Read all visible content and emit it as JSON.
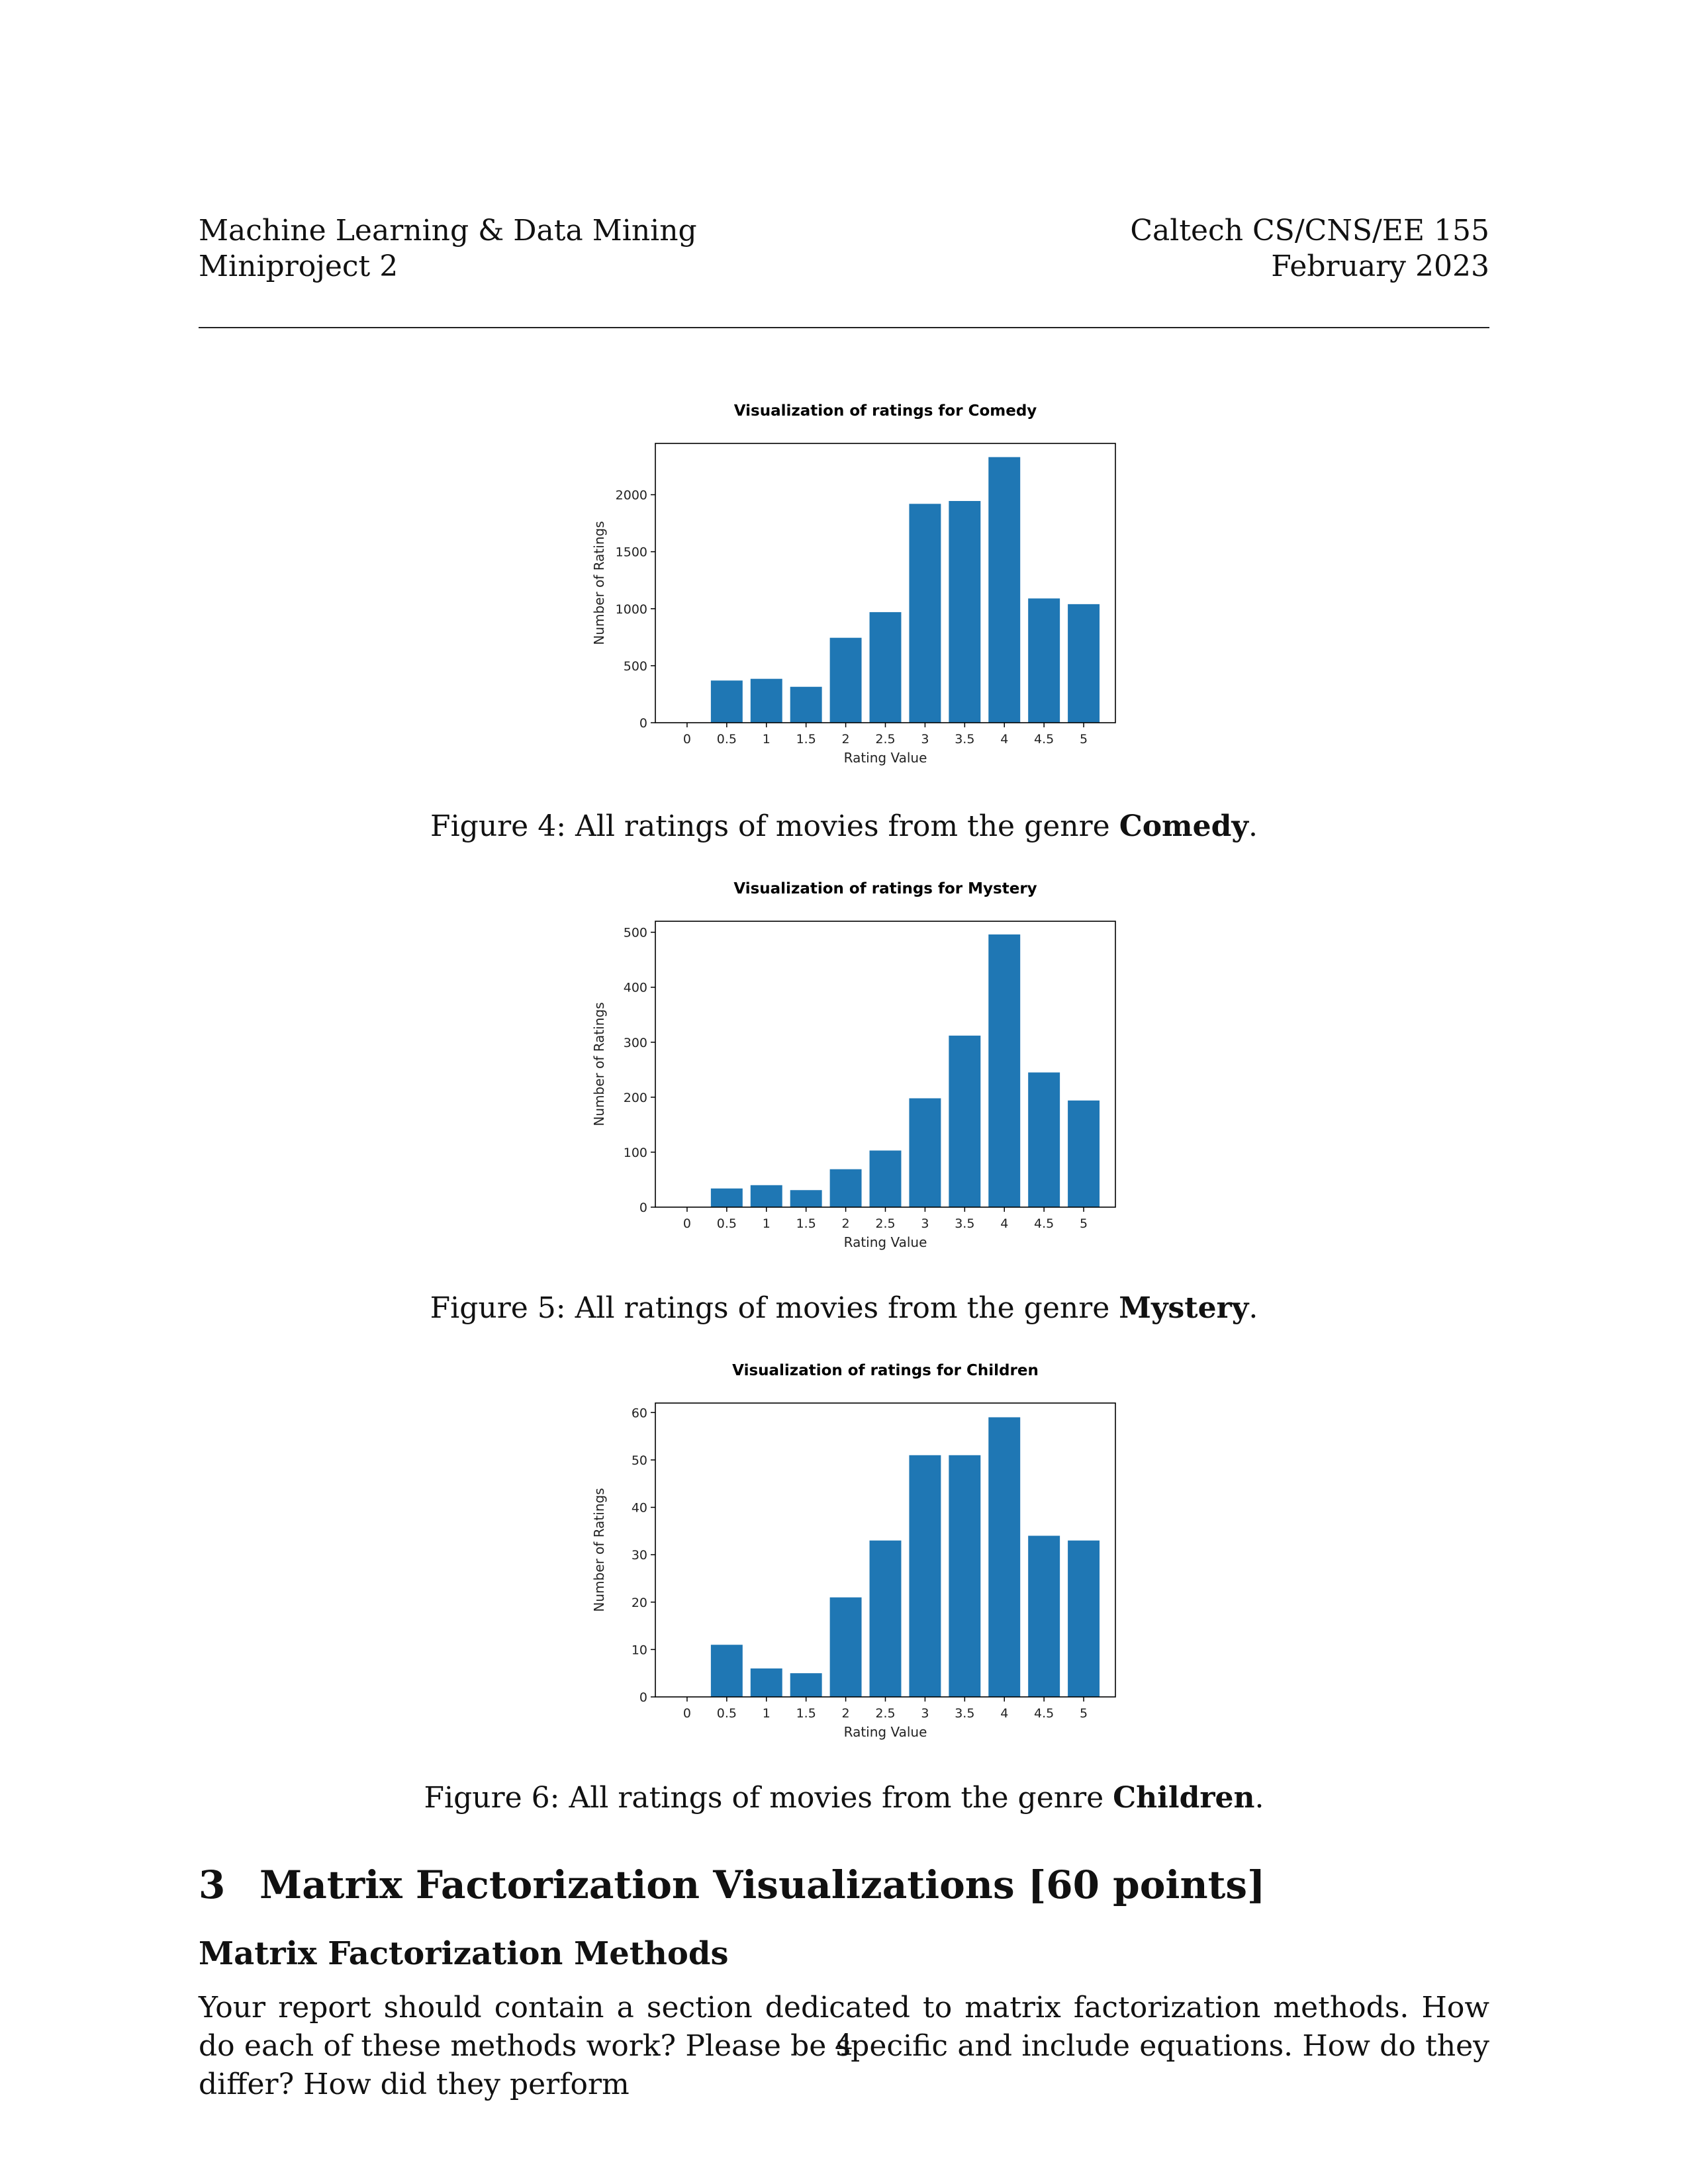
{
  "header": {
    "left_line1": "Machine Learning & Data Mining",
    "left_line2": "Miniproject 2",
    "right_line1": "Caltech CS/CNS/EE 155",
    "right_line2": "February 2023"
  },
  "figures": [
    {
      "caption_prefix": "Figure 4: All ratings of movies from the genre ",
      "caption_bold": "Comedy",
      "caption_suffix": "."
    },
    {
      "caption_prefix": "Figure 5: All ratings of movies from the genre ",
      "caption_bold": "Mystery",
      "caption_suffix": "."
    },
    {
      "caption_prefix": "Figure 6: All ratings of movies from the genre ",
      "caption_bold": "Children",
      "caption_suffix": "."
    }
  ],
  "chart_data": [
    {
      "type": "bar",
      "title": "Visualization of ratings for Comedy",
      "xlabel": "Rating Value",
      "ylabel": "Number of Ratings",
      "categories": [
        "0",
        "0.5",
        "1",
        "1.5",
        "2",
        "2.5",
        "3",
        "3.5",
        "4",
        "4.5",
        "5"
      ],
      "values": [
        0,
        370,
        385,
        315,
        745,
        970,
        1920,
        1945,
        2330,
        1090,
        1040
      ],
      "yticks": [
        0,
        500,
        1000,
        1500,
        2000
      ],
      "ylim": [
        0,
        2450
      ],
      "color": "#1f77b4",
      "grid": false
    },
    {
      "type": "bar",
      "title": "Visualization of ratings for Mystery",
      "xlabel": "Rating Value",
      "ylabel": "Number of Ratings",
      "categories": [
        "0",
        "0.5",
        "1",
        "1.5",
        "2",
        "2.5",
        "3",
        "3.5",
        "4",
        "4.5",
        "5"
      ],
      "values": [
        0,
        34,
        40,
        31,
        69,
        103,
        198,
        312,
        496,
        245,
        194
      ],
      "yticks": [
        0,
        100,
        200,
        300,
        400,
        500
      ],
      "ylim": [
        0,
        520
      ],
      "color": "#1f77b4",
      "grid": false
    },
    {
      "type": "bar",
      "title": "Visualization of ratings for Children",
      "xlabel": "Rating Value",
      "ylabel": "Number of Ratings",
      "categories": [
        "0",
        "0.5",
        "1",
        "1.5",
        "2",
        "2.5",
        "3",
        "3.5",
        "4",
        "4.5",
        "5"
      ],
      "values": [
        0,
        11,
        6,
        5,
        21,
        33,
        51,
        51,
        59,
        34,
        33
      ],
      "yticks": [
        0,
        10,
        20,
        30,
        40,
        50,
        60
      ],
      "ylim": [
        0,
        62
      ],
      "color": "#1f77b4",
      "grid": false
    }
  ],
  "section": {
    "number": "3",
    "title": "Matrix Factorization Visualizations [60 points]"
  },
  "subsection": {
    "title": "Matrix Factorization Methods"
  },
  "body_text": "Your report should contain a section dedicated to matrix factorization methods. How do each of these methods work? Please be specific and include equations. How do they differ? How did they perform",
  "page_number": "4"
}
